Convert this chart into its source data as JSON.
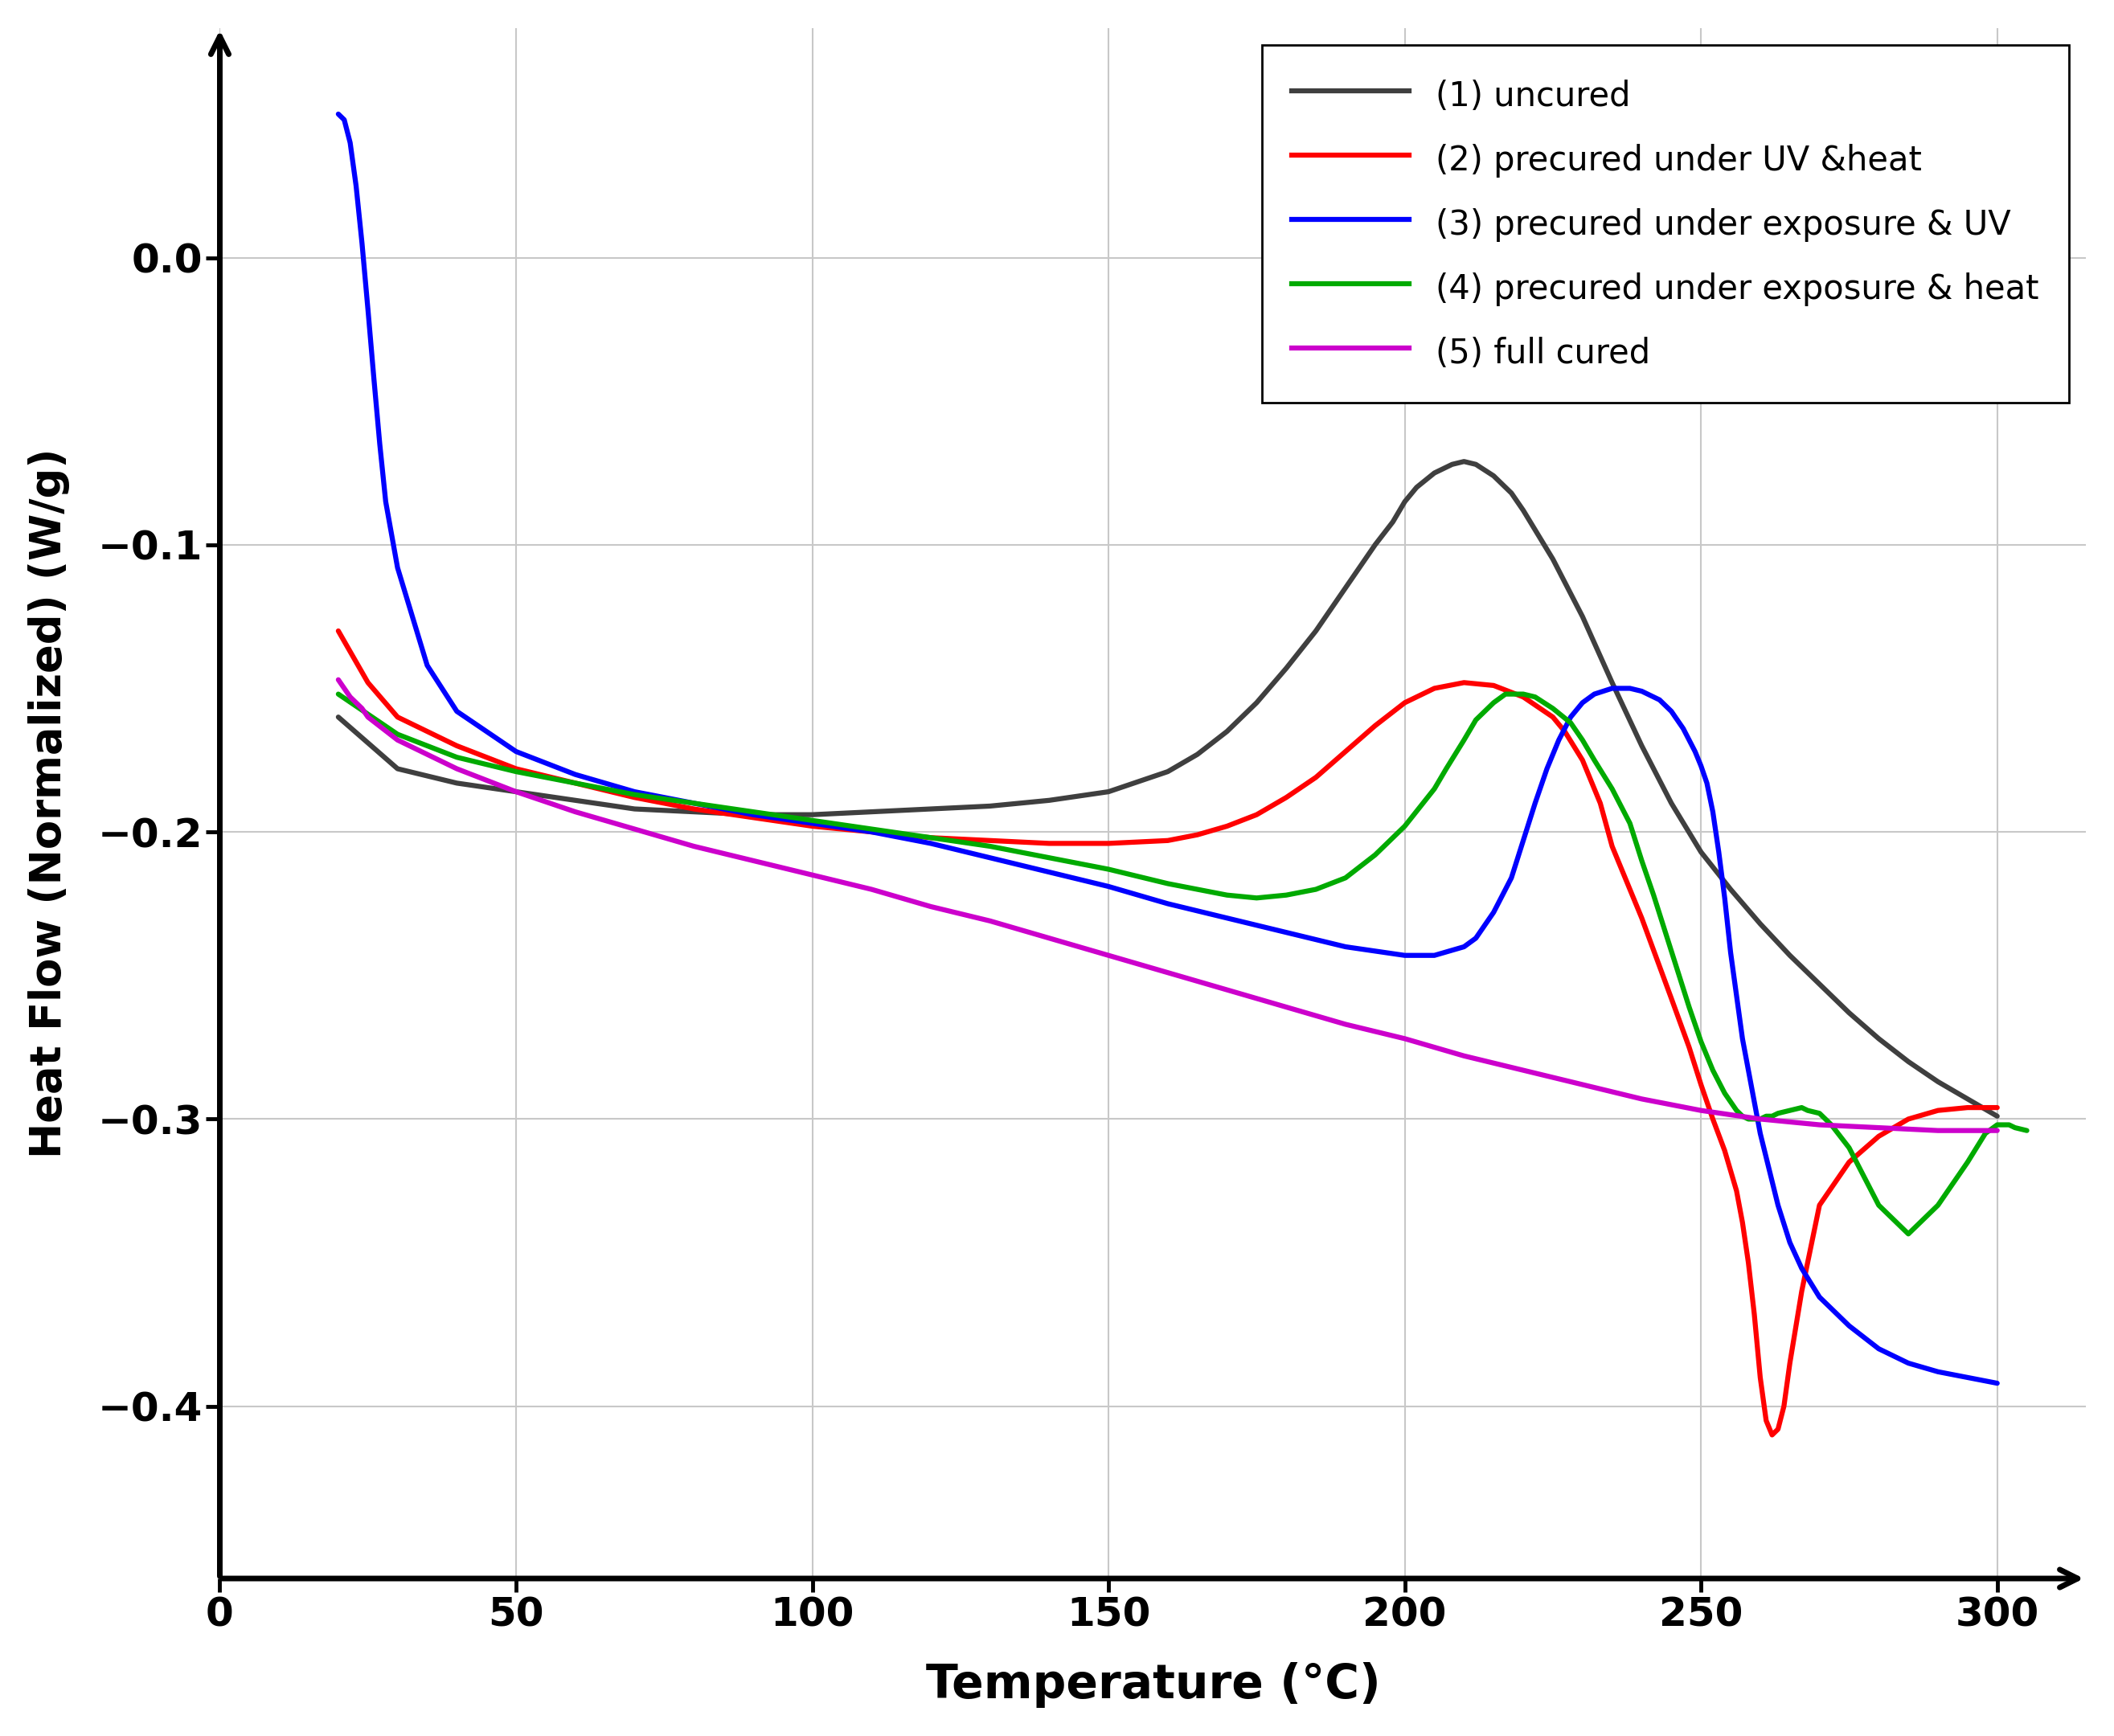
{
  "xlabel": "Temperature (°C)",
  "ylabel": "Heat Flow (Normalized) (W/g)",
  "xlim": [
    0,
    315
  ],
  "ylim": [
    -0.46,
    0.08
  ],
  "xticks": [
    0,
    50,
    100,
    150,
    200,
    250,
    300
  ],
  "yticks": [
    0.0,
    -0.1,
    -0.2,
    -0.3,
    -0.4
  ],
  "background_color": "#ffffff",
  "grid_color": "#c8c8c8",
  "legend_labels": [
    "(1) uncured",
    "(2) precured under UV &heat",
    "(3) precured under exposure & UV",
    "(4) precured under exposure & heat",
    "(5) full cured"
  ],
  "line_colors": [
    "#3f3f3f",
    "#ff0000",
    "#0000ff",
    "#00aa00",
    "#cc00cc"
  ],
  "series": {
    "uncured": {
      "x": [
        20,
        30,
        40,
        50,
        60,
        70,
        80,
        90,
        100,
        110,
        120,
        130,
        140,
        150,
        160,
        165,
        170,
        175,
        180,
        185,
        190,
        195,
        198,
        200,
        202,
        205,
        208,
        210,
        212,
        215,
        218,
        220,
        225,
        230,
        235,
        240,
        245,
        250,
        255,
        260,
        265,
        270,
        275,
        280,
        285,
        290,
        295,
        300
      ],
      "y": [
        -0.16,
        -0.178,
        -0.183,
        -0.186,
        -0.189,
        -0.192,
        -0.193,
        -0.194,
        -0.194,
        -0.193,
        -0.192,
        -0.191,
        -0.189,
        -0.186,
        -0.179,
        -0.173,
        -0.165,
        -0.155,
        -0.143,
        -0.13,
        -0.115,
        -0.1,
        -0.092,
        -0.085,
        -0.08,
        -0.075,
        -0.072,
        -0.071,
        -0.072,
        -0.076,
        -0.082,
        -0.088,
        -0.105,
        -0.125,
        -0.148,
        -0.17,
        -0.19,
        -0.207,
        -0.22,
        -0.232,
        -0.243,
        -0.253,
        -0.263,
        -0.272,
        -0.28,
        -0.287,
        -0.293,
        -0.299
      ]
    },
    "uv_heat": {
      "x": [
        20,
        25,
        30,
        40,
        50,
        60,
        70,
        80,
        90,
        100,
        110,
        120,
        130,
        140,
        150,
        160,
        165,
        170,
        175,
        180,
        185,
        190,
        195,
        200,
        205,
        210,
        215,
        220,
        225,
        227,
        230,
        233,
        235,
        240,
        245,
        248,
        250,
        252,
        254,
        255,
        256,
        257,
        258,
        259,
        260,
        261,
        262,
        263,
        264,
        265,
        267,
        270,
        275,
        280,
        285,
        290,
        295,
        300
      ],
      "y": [
        -0.13,
        -0.148,
        -0.16,
        -0.17,
        -0.178,
        -0.183,
        -0.188,
        -0.192,
        -0.195,
        -0.198,
        -0.2,
        -0.202,
        -0.203,
        -0.204,
        -0.204,
        -0.203,
        -0.201,
        -0.198,
        -0.194,
        -0.188,
        -0.181,
        -0.172,
        -0.163,
        -0.155,
        -0.15,
        -0.148,
        -0.149,
        -0.153,
        -0.16,
        -0.165,
        -0.175,
        -0.19,
        -0.205,
        -0.23,
        -0.258,
        -0.275,
        -0.288,
        -0.3,
        -0.311,
        -0.318,
        -0.325,
        -0.336,
        -0.35,
        -0.368,
        -0.39,
        -0.405,
        -0.41,
        -0.408,
        -0.4,
        -0.385,
        -0.36,
        -0.33,
        -0.315,
        -0.306,
        -0.3,
        -0.297,
        -0.296,
        -0.296
      ]
    },
    "exposure_uv": {
      "x": [
        20,
        21,
        22,
        23,
        24,
        25,
        26,
        27,
        28,
        30,
        35,
        40,
        50,
        60,
        70,
        80,
        90,
        100,
        110,
        120,
        130,
        140,
        150,
        160,
        170,
        180,
        190,
        200,
        205,
        210,
        212,
        215,
        218,
        220,
        222,
        224,
        226,
        228,
        230,
        232,
        235,
        238,
        240,
        243,
        245,
        247,
        249,
        250,
        251,
        252,
        253,
        254,
        255,
        257,
        260,
        263,
        265,
        267,
        270,
        275,
        280,
        285,
        290,
        295,
        300
      ],
      "y": [
        0.05,
        0.048,
        0.04,
        0.025,
        0.005,
        -0.018,
        -0.042,
        -0.065,
        -0.085,
        -0.108,
        -0.142,
        -0.158,
        -0.172,
        -0.18,
        -0.186,
        -0.19,
        -0.194,
        -0.197,
        -0.2,
        -0.204,
        -0.209,
        -0.214,
        -0.219,
        -0.225,
        -0.23,
        -0.235,
        -0.24,
        -0.243,
        -0.243,
        -0.24,
        -0.237,
        -0.228,
        -0.216,
        -0.203,
        -0.19,
        -0.178,
        -0.168,
        -0.16,
        -0.155,
        -0.152,
        -0.15,
        -0.15,
        -0.151,
        -0.154,
        -0.158,
        -0.164,
        -0.172,
        -0.177,
        -0.183,
        -0.193,
        -0.207,
        -0.223,
        -0.242,
        -0.272,
        -0.305,
        -0.33,
        -0.343,
        -0.352,
        -0.362,
        -0.372,
        -0.38,
        -0.385,
        -0.388,
        -0.39,
        -0.392
      ]
    },
    "exposure_heat": {
      "x": [
        20,
        30,
        40,
        50,
        60,
        70,
        80,
        90,
        100,
        110,
        120,
        130,
        140,
        150,
        160,
        165,
        170,
        175,
        180,
        185,
        190,
        195,
        200,
        205,
        207,
        210,
        212,
        215,
        217,
        220,
        222,
        225,
        228,
        230,
        232,
        235,
        238,
        240,
        242,
        244,
        246,
        248,
        250,
        252,
        254,
        255,
        256,
        257,
        258,
        259,
        260,
        261,
        262,
        263,
        265,
        267,
        268,
        270,
        272,
        275,
        280,
        285,
        290,
        295,
        298,
        300,
        302,
        303,
        305
      ],
      "y": [
        -0.152,
        -0.166,
        -0.174,
        -0.179,
        -0.183,
        -0.187,
        -0.19,
        -0.193,
        -0.196,
        -0.199,
        -0.202,
        -0.205,
        -0.209,
        -0.213,
        -0.218,
        -0.22,
        -0.222,
        -0.223,
        -0.222,
        -0.22,
        -0.216,
        -0.208,
        -0.198,
        -0.185,
        -0.178,
        -0.168,
        -0.161,
        -0.155,
        -0.152,
        -0.152,
        -0.153,
        -0.157,
        -0.162,
        -0.168,
        -0.175,
        -0.185,
        -0.197,
        -0.21,
        -0.222,
        -0.235,
        -0.248,
        -0.261,
        -0.273,
        -0.283,
        -0.291,
        -0.294,
        -0.297,
        -0.299,
        -0.3,
        -0.3,
        -0.3,
        -0.299,
        -0.299,
        -0.298,
        -0.297,
        -0.296,
        -0.297,
        -0.298,
        -0.302,
        -0.31,
        -0.33,
        -0.34,
        -0.33,
        -0.315,
        -0.305,
        -0.302,
        -0.302,
        -0.303,
        -0.304
      ]
    },
    "full_cured": {
      "x": [
        20,
        22,
        24,
        25,
        30,
        40,
        50,
        60,
        70,
        80,
        90,
        100,
        110,
        120,
        130,
        140,
        150,
        160,
        170,
        180,
        190,
        200,
        210,
        220,
        230,
        240,
        250,
        260,
        270,
        280,
        290,
        300
      ],
      "y": [
        -0.147,
        -0.153,
        -0.157,
        -0.16,
        -0.168,
        -0.178,
        -0.186,
        -0.193,
        -0.199,
        -0.205,
        -0.21,
        -0.215,
        -0.22,
        -0.226,
        -0.231,
        -0.237,
        -0.243,
        -0.249,
        -0.255,
        -0.261,
        -0.267,
        -0.272,
        -0.278,
        -0.283,
        -0.288,
        -0.293,
        -0.297,
        -0.3,
        -0.302,
        -0.303,
        -0.304,
        -0.304
      ]
    }
  }
}
